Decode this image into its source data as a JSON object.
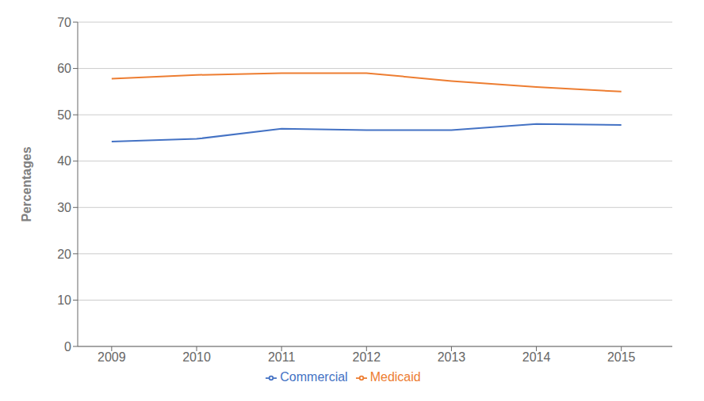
{
  "chart_data": {
    "type": "line",
    "x": [
      2009,
      2010,
      2011,
      2012,
      2013,
      2014,
      2015
    ],
    "series": [
      {
        "name": "Commercial",
        "color": "#4472C4",
        "values": [
          44.2,
          44.8,
          47.0,
          46.7,
          46.7,
          48.0,
          47.8
        ]
      },
      {
        "name": "Medicaid",
        "color": "#ED7D31",
        "values": [
          57.8,
          58.6,
          59.0,
          59.0,
          57.3,
          56.0,
          55.0
        ]
      }
    ],
    "xlim": [
      2008.6,
      2015.6
    ],
    "xticks": [
      2009,
      2010,
      2011,
      2012,
      2013,
      2014,
      2015
    ],
    "ylim": [
      0,
      70
    ],
    "yticks": [
      0,
      10,
      20,
      30,
      40,
      50,
      60,
      70
    ],
    "ylabel": "Percentages",
    "grid": true,
    "legend": "bottom"
  }
}
